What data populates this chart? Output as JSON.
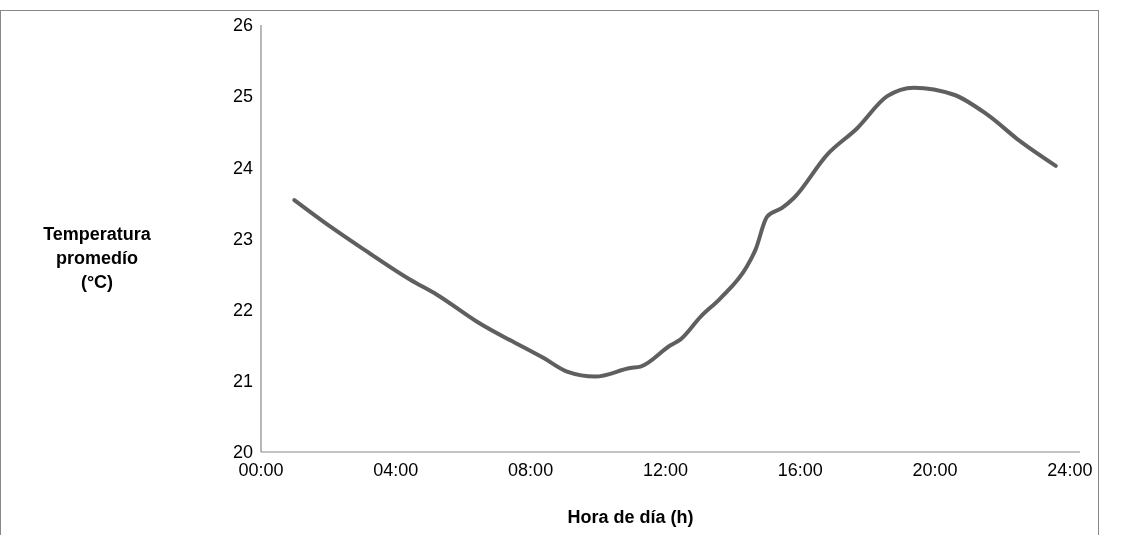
{
  "chart_data": {
    "type": "line",
    "xlabel": "Hora de día (h)",
    "ylabel": "Temperatura promedío (°C)",
    "xlim": [
      0,
      24.3
    ],
    "xticks": [
      {
        "value": 0,
        "label": "00:00"
      },
      {
        "value": 4,
        "label": "04:00"
      },
      {
        "value": 8,
        "label": "08:00"
      },
      {
        "value": 12,
        "label": "12:00"
      },
      {
        "value": 16,
        "label": "16:00"
      },
      {
        "value": 20,
        "label": "20:00"
      },
      {
        "value": 24,
        "label": "24:00"
      }
    ],
    "ylim": [
      20,
      26
    ],
    "yticks": [
      20,
      21,
      22,
      23,
      24,
      25,
      26
    ],
    "grid": false,
    "marker": "none",
    "line_style": "solid",
    "series": [
      {
        "color": "#5f5f5f",
        "x": [
          0.99,
          2.05,
          3.04,
          4.43,
          5.22,
          6.41,
          8.39,
          9.08,
          9.92,
          10.96,
          11.26,
          12.15,
          12.44,
          13.04,
          13.63,
          14.42,
          14.67,
          15.02,
          15.46,
          15.81,
          16.8,
          17.69,
          18.58,
          19.37,
          20.56,
          21.55,
          22.54,
          23.58
        ],
        "values": [
          23.54,
          23.17,
          22.85,
          22.42,
          22.21,
          21.83,
          21.32,
          21.13,
          21.06,
          21.18,
          21.2,
          21.5,
          21.58,
          21.9,
          22.16,
          22.61,
          22.84,
          23.31,
          23.43,
          23.57,
          24.18,
          24.55,
          25.0,
          25.12,
          25.02,
          24.74,
          24.36,
          24.02
        ]
      }
    ]
  }
}
